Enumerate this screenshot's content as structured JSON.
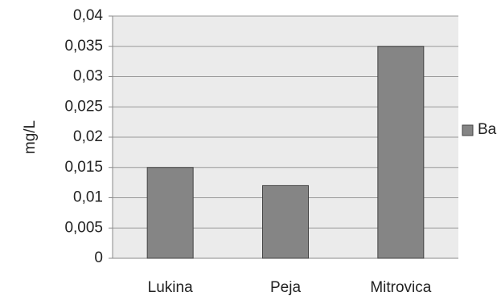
{
  "chart_data": {
    "type": "bar",
    "y_label": "mg/L",
    "categories": [
      "Lukina",
      "Peja",
      "Mitrovica"
    ],
    "series": [
      {
        "name": "Ba",
        "color": "#858585",
        "values": [
          0.015,
          0.012,
          0.035
        ]
      }
    ],
    "ylim": [
      0,
      0.04
    ],
    "yticks": [
      0,
      {
        "value": 0.005,
        "label": "0,005"
      },
      {
        "value": 0.01,
        "label": "0,01"
      },
      {
        "value": 0.015,
        "label": "0,015"
      },
      {
        "value": 0.02,
        "label": "0,02"
      },
      {
        "value": 0.025,
        "label": "0,025"
      },
      {
        "value": 0.03,
        "label": "0,03"
      },
      {
        "value": 0.035,
        "label": "0,035"
      },
      {
        "value": 0.04,
        "label": "0,04"
      }
    ],
    "grid": true,
    "legend": "right"
  }
}
